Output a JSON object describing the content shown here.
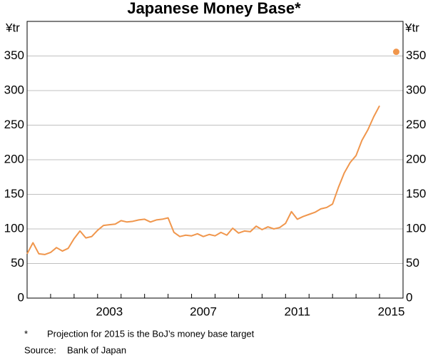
{
  "chart_data": {
    "type": "line",
    "title": "Japanese Money Base*",
    "y_unit_left": "¥tr",
    "y_unit_right": "¥tr",
    "xlim": [
      2000,
      2016
    ],
    "xticks": [
      {
        "value": 2003.5,
        "label": "2003"
      },
      {
        "value": 2007.5,
        "label": "2007"
      },
      {
        "value": 2011.5,
        "label": "2011"
      },
      {
        "value": 2015.5,
        "label": "2015"
      }
    ],
    "x_tick_marks": [
      2001,
      2002,
      2003,
      2004,
      2005,
      2006,
      2007,
      2008,
      2009,
      2010,
      2011,
      2012,
      2013,
      2014,
      2015
    ],
    "ylim": [
      0,
      400
    ],
    "yticks": [
      0,
      50,
      100,
      150,
      200,
      250,
      300,
      350
    ],
    "grid": true,
    "series": [
      {
        "name": "Money base",
        "color": "#f0964c",
        "style": "line",
        "x": [
          2000,
          2000.25,
          2000.5,
          2000.75,
          2001,
          2001.25,
          2001.5,
          2001.75,
          2002,
          2002.25,
          2002.5,
          2002.75,
          2003,
          2003.25,
          2003.5,
          2003.75,
          2004,
          2004.25,
          2004.5,
          2004.75,
          2005,
          2005.25,
          2005.5,
          2005.75,
          2006,
          2006.25,
          2006.5,
          2006.75,
          2007,
          2007.25,
          2007.5,
          2007.75,
          2008,
          2008.25,
          2008.5,
          2008.75,
          2009,
          2009.25,
          2009.5,
          2009.75,
          2010,
          2010.25,
          2010.5,
          2010.75,
          2011,
          2011.25,
          2011.5,
          2011.75,
          2012,
          2012.25,
          2012.5,
          2012.75,
          2013,
          2013.25,
          2013.5,
          2013.75,
          2014,
          2014.25,
          2014.5,
          2014.75,
          2015
        ],
        "values": [
          64,
          80,
          64,
          63,
          66,
          73,
          68,
          72,
          86,
          97,
          87,
          89,
          98,
          105,
          106,
          107,
          112,
          110,
          111,
          113,
          114,
          110,
          113,
          114,
          116,
          95,
          89,
          91,
          90,
          93,
          89,
          92,
          90,
          95,
          91,
          101,
          94,
          97,
          96,
          104,
          99,
          103,
          100,
          102,
          108,
          125,
          114,
          118,
          121,
          124,
          129,
          131,
          136,
          160,
          181,
          196,
          206,
          228,
          243,
          262,
          278
        ]
      },
      {
        "name": "Projection",
        "color": "#f0964c",
        "style": "marker",
        "x": [
          2015.71
        ],
        "values": [
          356
        ]
      }
    ],
    "footnotes": [
      {
        "marker": "*",
        "text": "Projection for 2015 is the BoJ’s money base target"
      },
      {
        "marker": "Source:",
        "text": "Bank of Japan"
      }
    ]
  }
}
